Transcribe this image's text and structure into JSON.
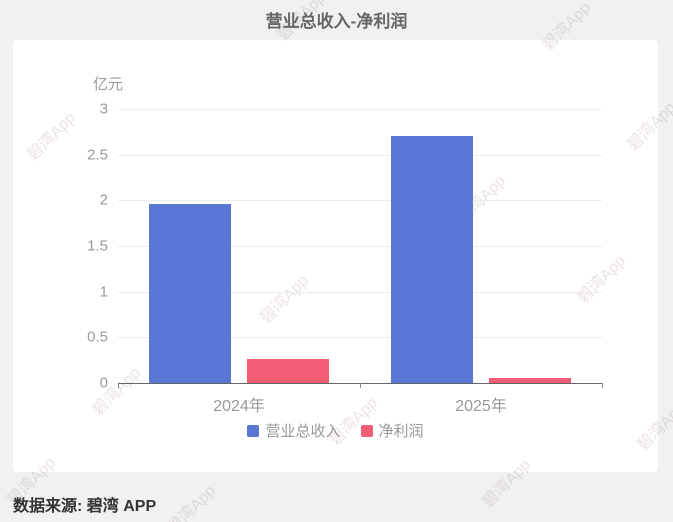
{
  "page": {
    "title": "营业总收入-净利润",
    "source_text": "数据来源: 碧湾 APP",
    "watermark_text": "碧湾App"
  },
  "chart_data": {
    "type": "bar",
    "title": "营业总收入-净利润",
    "unit_label": "亿元",
    "categories": [
      "2024年",
      "2025年"
    ],
    "series": [
      {
        "name": "营业总收入",
        "color": "#5B77D6",
        "values": [
          1.96,
          2.71
        ]
      },
      {
        "name": "净利润",
        "color": "#F05D75",
        "values": [
          0.26,
          0.05
        ]
      }
    ],
    "ylim": [
      0,
      3
    ],
    "yticks": [
      0,
      0.5,
      1,
      1.5,
      2,
      2.5,
      3
    ],
    "grid": true,
    "legend_position": "bottom"
  },
  "colors": {
    "page_background": "#f0f1f1",
    "card_background": "#ffffff",
    "title_text": "#666666",
    "axis_line": "#666666",
    "gridline": "#ececec",
    "tick_text": "#999999",
    "legend_text": "#999999",
    "footer_text": "#333333",
    "series_blue": "#5B77D6",
    "series_red": "#F05D75"
  }
}
